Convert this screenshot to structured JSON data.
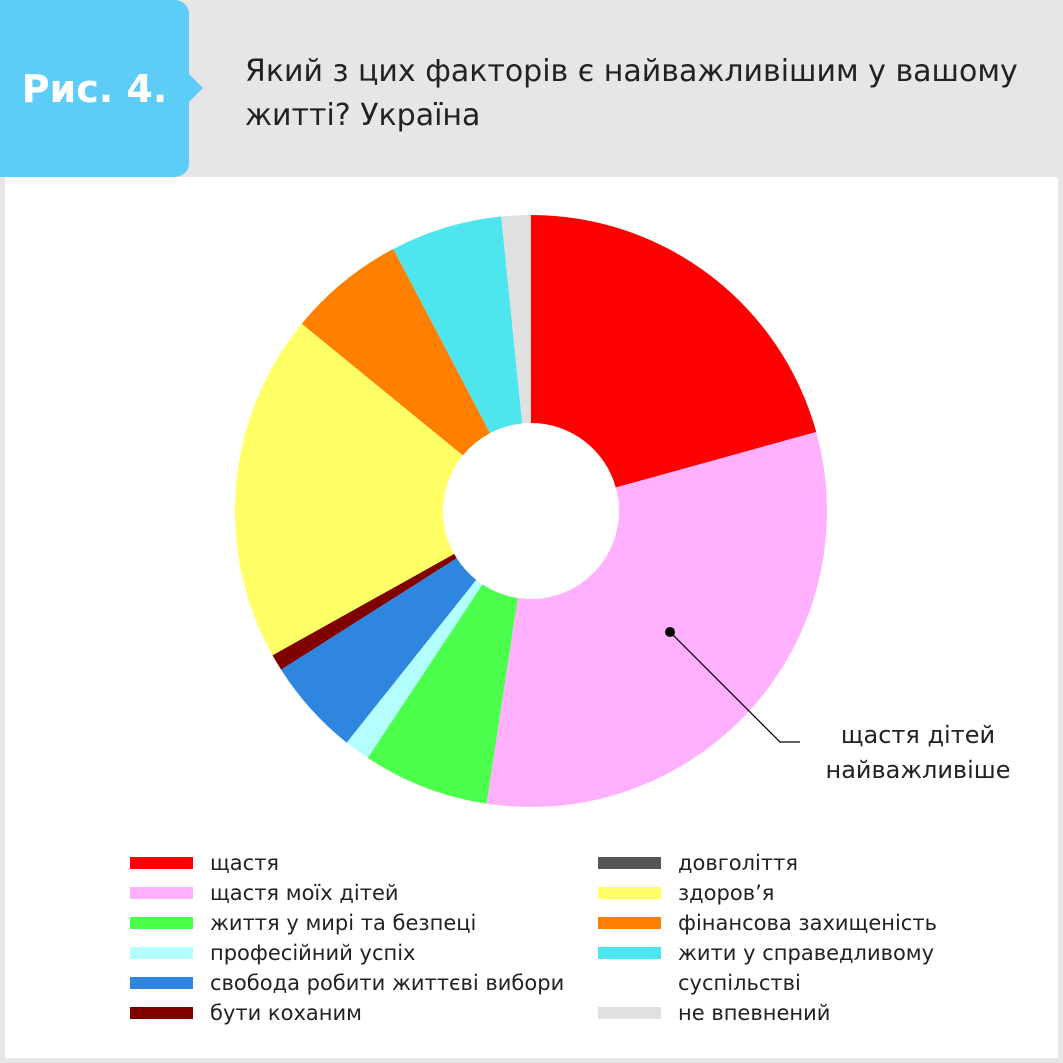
{
  "chart_data": {
    "type": "pie",
    "badge": "Рис. 4.",
    "title": "Який з цих факторів є найважливішим у вашому житті? Україна",
    "annotation": [
      "щастя дітей",
      "найважливіше"
    ],
    "categories": [
      "щастя",
      "щастя моїх дітей",
      "життя у мирі та безпеці",
      "професійний успіх",
      "свобода робити життєві вибори",
      "бути коханим",
      "довголіття",
      "здоров’я",
      "фінансова захищеність",
      "жити у справедливому суспільстві",
      "не впевнений"
    ],
    "values": [
      20.7,
      31.7,
      6.9,
      1.4,
      5.3,
      0.9,
      0,
      19.0,
      6.4,
      6.1,
      1.6
    ],
    "colors": [
      "#ff0000",
      "#ffb0ff",
      "#4dff4d",
      "#b3ffff",
      "#2e86de",
      "#800000",
      "#555555",
      "#ffff66",
      "#ff8000",
      "#4de6ee",
      "#e0e0e0"
    ],
    "donut": true
  }
}
